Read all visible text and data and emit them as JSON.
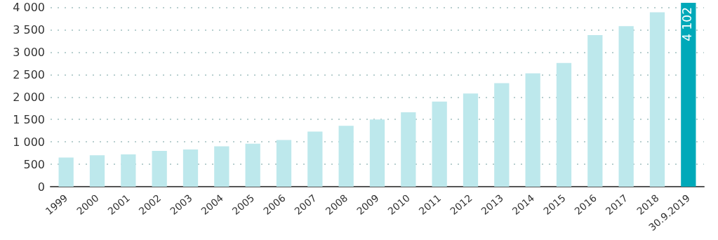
{
  "chart_data": {
    "type": "bar",
    "categories": [
      "1999",
      "2000",
      "2001",
      "2002",
      "2003",
      "2004",
      "2005",
      "2006",
      "2007",
      "2008",
      "2009",
      "2010",
      "2011",
      "2012",
      "2013",
      "2014",
      "2015",
      "2016",
      "2017",
      "2018",
      "30.9.2019"
    ],
    "values": [
      650,
      700,
      720,
      800,
      830,
      900,
      960,
      1040,
      1230,
      1360,
      1500,
      1660,
      1900,
      2080,
      2310,
      2530,
      2760,
      3380,
      3580,
      3890,
      4102
    ],
    "colors": [
      "#bde8ec",
      "#bde8ec",
      "#bde8ec",
      "#bde8ec",
      "#bde8ec",
      "#bde8ec",
      "#bde8ec",
      "#bde8ec",
      "#bde8ec",
      "#bde8ec",
      "#bde8ec",
      "#bde8ec",
      "#bde8ec",
      "#bde8ec",
      "#bde8ec",
      "#bde8ec",
      "#bde8ec",
      "#bde8ec",
      "#bde8ec",
      "#bde8ec",
      "#00a9b9"
    ],
    "value_labels": [
      null,
      null,
      null,
      null,
      null,
      null,
      null,
      null,
      null,
      null,
      null,
      null,
      null,
      null,
      null,
      null,
      null,
      null,
      null,
      null,
      "4 102"
    ],
    "yticks": [
      0,
      500,
      {
        "value": 1000,
        "label": "1 000"
      },
      {
        "value": 1500,
        "label": "1 500"
      },
      {
        "value": 2000,
        "label": "2 000"
      },
      {
        "value": 2500,
        "label": "2 500"
      },
      {
        "value": 3000,
        "label": "3 000"
      },
      {
        "value": 3500,
        "label": "3 500"
      },
      {
        "value": 4000,
        "label": "4 000"
      }
    ],
    "ylim": [
      0,
      4102
    ],
    "grid": "y"
  }
}
